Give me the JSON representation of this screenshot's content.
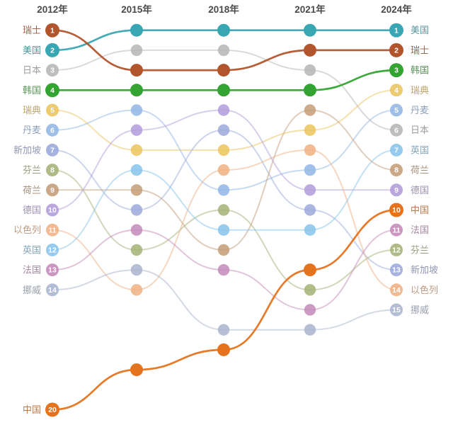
{
  "chart_data": {
    "type": "line",
    "subtype": "bump-ranking",
    "years": [
      "2012年",
      "2015年",
      "2018年",
      "2021年",
      "2024年"
    ],
    "rank_range": [
      1,
      20
    ],
    "grid": false,
    "legend_position": "none",
    "note_visible_ranks_left_2012": [
      1,
      2,
      3,
      4,
      5,
      6,
      7,
      8,
      9,
      10,
      11,
      12,
      13,
      14,
      20
    ],
    "note_visible_ranks_right_2024": [
      1,
      2,
      3,
      4,
      5,
      6,
      7,
      8,
      9,
      10,
      11,
      12,
      13,
      14,
      15
    ],
    "series": [
      {
        "name": "美国",
        "color": "#38a6b3",
        "strong": true,
        "ranks": [
          2,
          1,
          1,
          1,
          1
        ]
      },
      {
        "name": "瑞士",
        "color": "#b2552c",
        "strong": true,
        "ranks": [
          1,
          3,
          3,
          2,
          2
        ]
      },
      {
        "name": "日本",
        "color": "#b5b5b5",
        "strong": false,
        "ranks": [
          3,
          2,
          2,
          3,
          6
        ]
      },
      {
        "name": "韩国",
        "color": "#33a431",
        "strong": true,
        "ranks": [
          4,
          4,
          4,
          4,
          3
        ]
      },
      {
        "name": "瑞典",
        "color": "#ebc45c",
        "strong": false,
        "ranks": [
          5,
          7,
          7,
          6,
          4
        ]
      },
      {
        "name": "丹麦",
        "color": "#92b6e6",
        "strong": false,
        "ranks": [
          6,
          5,
          9,
          8,
          5
        ]
      },
      {
        "name": "新加坡",
        "color": "#9ba9db",
        "strong": false,
        "ranks": [
          7,
          10,
          6,
          10,
          13
        ]
      },
      {
        "name": "芬兰",
        "color": "#a4b175",
        "strong": false,
        "ranks": [
          8,
          12,
          10,
          14,
          12
        ]
      },
      {
        "name": "荷兰",
        "color": "#c49c77",
        "strong": false,
        "ranks": [
          9,
          9,
          12,
          5,
          8
        ]
      },
      {
        "name": "德国",
        "color": "#b19bda",
        "strong": false,
        "ranks": [
          10,
          6,
          5,
          9,
          9
        ]
      },
      {
        "name": "以色列",
        "color": "#f0b083",
        "strong": false,
        "ranks": [
          11,
          14,
          8,
          7,
          14
        ]
      },
      {
        "name": "英国",
        "color": "#87c4ea",
        "strong": false,
        "ranks": [
          12,
          8,
          11,
          11,
          7
        ]
      },
      {
        "name": "法国",
        "color": "#c389b8",
        "strong": false,
        "ranks": [
          13,
          11,
          13,
          15,
          11
        ]
      },
      {
        "name": "挪威",
        "color": "#a9b4ce",
        "strong": false,
        "ranks": [
          14,
          13,
          16,
          16,
          15
        ]
      },
      {
        "name": "中国",
        "color": "#e5731d",
        "strong": true,
        "ranks": [
          20,
          18,
          17,
          13,
          10
        ]
      }
    ],
    "header_color": "#4a4a4a",
    "badge_number_color": "#ffffff"
  }
}
